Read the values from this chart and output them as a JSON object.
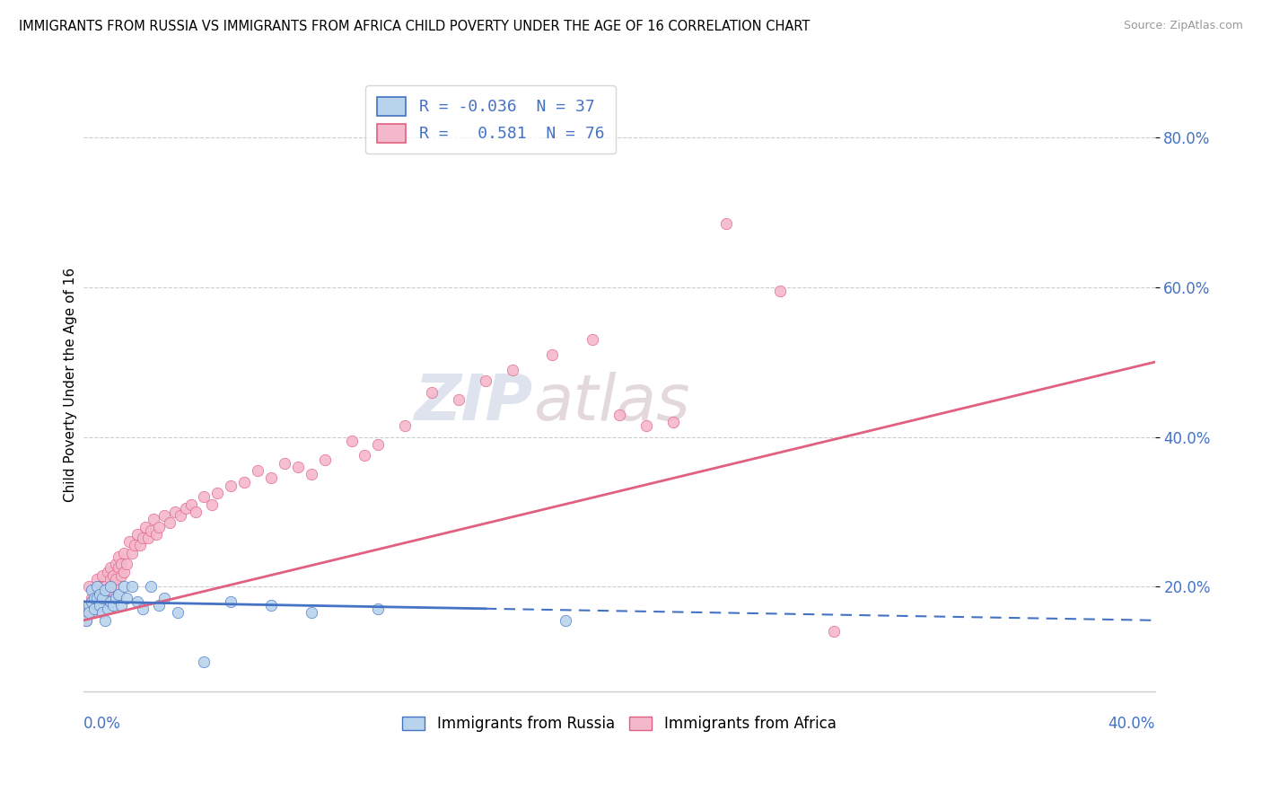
{
  "title": "IMMIGRANTS FROM RUSSIA VS IMMIGRANTS FROM AFRICA CHILD POVERTY UNDER THE AGE OF 16 CORRELATION CHART",
  "source": "Source: ZipAtlas.com",
  "ylabel": "Child Poverty Under the Age of 16",
  "xlim": [
    0.0,
    0.4
  ],
  "ylim": [
    0.06,
    0.88
  ],
  "watermark_zip": "ZIP",
  "watermark_atlas": "atlas",
  "russia": {
    "label": "Immigrants from Russia",
    "R": -0.036,
    "N": 37,
    "scatter_color": "#b8d4ed",
    "line_color": "#4472c4",
    "trend_solid_end": 0.15
  },
  "africa": {
    "label": "Immigrants from Africa",
    "R": 0.581,
    "N": 76,
    "scatter_color": "#f4b8cc",
    "line_color": "#e06080"
  },
  "russia_x": [
    0.001,
    0.002,
    0.002,
    0.003,
    0.003,
    0.004,
    0.004,
    0.005,
    0.005,
    0.006,
    0.006,
    0.007,
    0.007,
    0.008,
    0.008,
    0.009,
    0.01,
    0.01,
    0.011,
    0.012,
    0.013,
    0.014,
    0.015,
    0.016,
    0.018,
    0.02,
    0.022,
    0.025,
    0.028,
    0.03,
    0.035,
    0.045,
    0.055,
    0.07,
    0.085,
    0.11,
    0.18
  ],
  "russia_y": [
    0.155,
    0.175,
    0.165,
    0.18,
    0.195,
    0.185,
    0.17,
    0.2,
    0.185,
    0.175,
    0.19,
    0.165,
    0.185,
    0.195,
    0.155,
    0.17,
    0.18,
    0.2,
    0.175,
    0.185,
    0.19,
    0.175,
    0.2,
    0.185,
    0.2,
    0.18,
    0.17,
    0.2,
    0.175,
    0.185,
    0.165,
    0.1,
    0.18,
    0.175,
    0.165,
    0.17,
    0.155
  ],
  "africa_x": [
    0.001,
    0.002,
    0.002,
    0.003,
    0.003,
    0.004,
    0.004,
    0.005,
    0.005,
    0.006,
    0.006,
    0.007,
    0.007,
    0.008,
    0.008,
    0.009,
    0.009,
    0.01,
    0.01,
    0.011,
    0.011,
    0.012,
    0.012,
    0.013,
    0.013,
    0.014,
    0.014,
    0.015,
    0.015,
    0.016,
    0.017,
    0.018,
    0.019,
    0.02,
    0.021,
    0.022,
    0.023,
    0.024,
    0.025,
    0.026,
    0.027,
    0.028,
    0.03,
    0.032,
    0.034,
    0.036,
    0.038,
    0.04,
    0.042,
    0.045,
    0.048,
    0.05,
    0.055,
    0.06,
    0.065,
    0.07,
    0.075,
    0.08,
    0.085,
    0.09,
    0.1,
    0.105,
    0.11,
    0.12,
    0.13,
    0.14,
    0.15,
    0.16,
    0.175,
    0.19,
    0.2,
    0.21,
    0.22,
    0.24,
    0.26,
    0.28
  ],
  "africa_y": [
    0.155,
    0.17,
    0.2,
    0.185,
    0.165,
    0.195,
    0.175,
    0.21,
    0.19,
    0.175,
    0.2,
    0.195,
    0.215,
    0.185,
    0.2,
    0.22,
    0.195,
    0.21,
    0.225,
    0.2,
    0.215,
    0.23,
    0.21,
    0.225,
    0.24,
    0.215,
    0.23,
    0.245,
    0.22,
    0.23,
    0.26,
    0.245,
    0.255,
    0.27,
    0.255,
    0.265,
    0.28,
    0.265,
    0.275,
    0.29,
    0.27,
    0.28,
    0.295,
    0.285,
    0.3,
    0.295,
    0.305,
    0.31,
    0.3,
    0.32,
    0.31,
    0.325,
    0.335,
    0.34,
    0.355,
    0.345,
    0.365,
    0.36,
    0.35,
    0.37,
    0.395,
    0.375,
    0.39,
    0.415,
    0.46,
    0.45,
    0.475,
    0.49,
    0.51,
    0.53,
    0.43,
    0.415,
    0.42,
    0.685,
    0.595,
    0.14
  ],
  "africa_line_x0": 0.0,
  "africa_line_y0": 0.155,
  "africa_line_x1": 0.4,
  "africa_line_y1": 0.5,
  "russia_line_x0": 0.0,
  "russia_line_y0": 0.18,
  "russia_line_x1": 0.4,
  "russia_line_y1": 0.155
}
